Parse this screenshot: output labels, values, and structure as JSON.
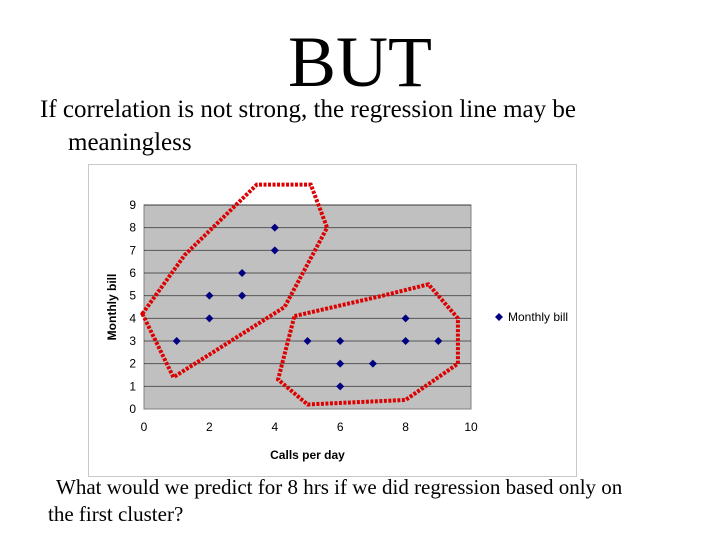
{
  "slide": {
    "title": "BUT",
    "bullet_line1": "If correlation is not strong, the regression line may be",
    "bullet_line2": "meaningless",
    "question_line1": "What would we predict for 8 hrs if we did regression based only on",
    "question_line2": "the first cluster?"
  },
  "chart_data": {
    "type": "scatter",
    "title": "",
    "xlabel": "Calls per day",
    "ylabel": "Monthly bill",
    "xlim": [
      0,
      10
    ],
    "ylim": [
      0,
      9
    ],
    "xticks": [
      0,
      2,
      4,
      6,
      8,
      10
    ],
    "yticks": [
      0,
      1,
      2,
      3,
      4,
      5,
      6,
      7,
      8,
      9
    ],
    "grid": "horizontal",
    "legend_position": "right",
    "series": [
      {
        "name": "Monthly bill",
        "color": "#000080",
        "marker": "diamond",
        "points": [
          [
            1,
            3
          ],
          [
            2,
            4
          ],
          [
            2,
            5
          ],
          [
            3,
            5
          ],
          [
            3,
            6
          ],
          [
            4,
            7
          ],
          [
            4,
            8
          ],
          [
            5,
            3
          ],
          [
            6,
            3
          ],
          [
            6,
            2
          ],
          [
            6,
            1
          ],
          [
            7,
            2
          ],
          [
            8,
            3
          ],
          [
            8,
            4
          ],
          [
            9,
            3
          ]
        ]
      }
    ],
    "annotations": [
      {
        "type": "dotted-outline",
        "color": "#dd0000",
        "label": "first cluster",
        "polygon": [
          [
            -0.05,
            4.2
          ],
          [
            0.9,
            1.4
          ],
          [
            4.3,
            4.5
          ],
          [
            5.6,
            8.0
          ],
          [
            5.1,
            9.9
          ],
          [
            3.45,
            9.9
          ],
          [
            1.25,
            6.8
          ]
        ]
      },
      {
        "type": "dotted-outline",
        "color": "#dd0000",
        "label": "second cluster",
        "polygon": [
          [
            4.6,
            4.1
          ],
          [
            7.3,
            5.0
          ],
          [
            8.7,
            5.5
          ],
          [
            9.6,
            4.0
          ],
          [
            9.6,
            2.0
          ],
          [
            8.0,
            0.4
          ],
          [
            5.0,
            0.2
          ],
          [
            4.1,
            1.3
          ]
        ]
      }
    ]
  }
}
